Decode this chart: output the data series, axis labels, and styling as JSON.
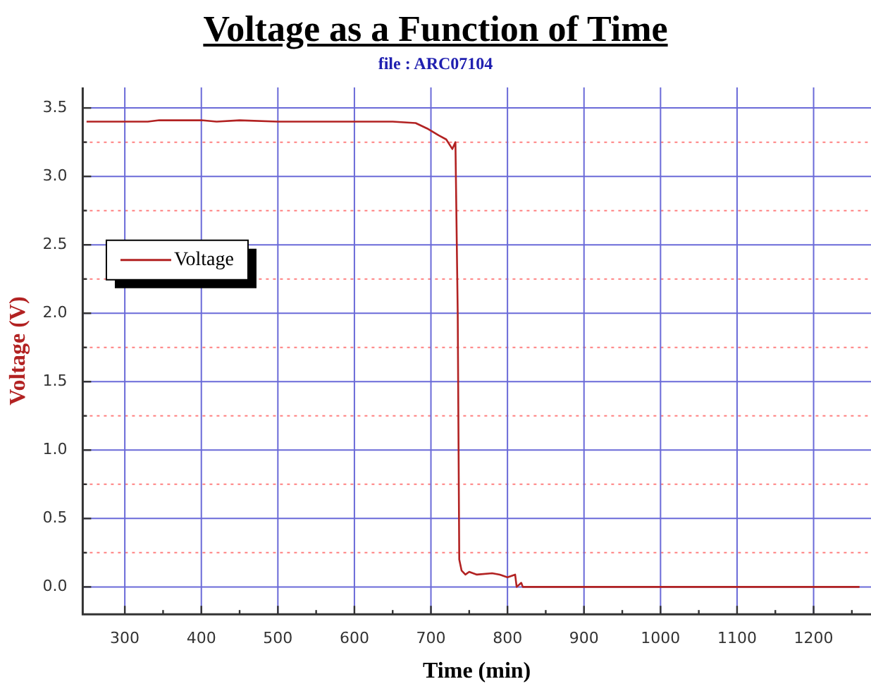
{
  "chart_data": {
    "type": "line",
    "title": "Voltage as a Function of Time",
    "subtitle": "file : ARC07104",
    "xlabel": "Time (min)",
    "ylabel": "Voltage (V)",
    "x": [
      250,
      330,
      345,
      400,
      420,
      450,
      500,
      550,
      600,
      650,
      680,
      695,
      710,
      720,
      728,
      732,
      735,
      737,
      740,
      745,
      750,
      760,
      780,
      790,
      800,
      810,
      812,
      818,
      820,
      1260
    ],
    "series": [
      {
        "name": "Voltage",
        "color": "#b22222",
        "values": [
          3.4,
          3.4,
          3.41,
          3.41,
          3.4,
          3.41,
          3.4,
          3.4,
          3.4,
          3.4,
          3.39,
          3.35,
          3.3,
          3.27,
          3.2,
          3.25,
          2.0,
          0.2,
          0.12,
          0.09,
          0.11,
          0.09,
          0.1,
          0.09,
          0.07,
          0.09,
          0.0,
          0.03,
          0.0,
          0.0
        ]
      }
    ],
    "xlim": [
      245,
      1275
    ],
    "ylim": [
      -0.2,
      3.65
    ],
    "xticks": [
      300,
      {
        "value": 350,
        "label": null
      },
      400,
      {
        "value": 450,
        "label": null
      },
      500,
      {
        "value": 550,
        "label": null
      },
      600,
      {
        "value": 650,
        "label": null
      },
      700,
      {
        "value": 750,
        "label": null
      },
      800,
      {
        "value": 850,
        "label": null
      },
      900,
      {
        "value": 950,
        "label": null
      },
      1000,
      {
        "value": 1050,
        "label": null
      },
      1100,
      {
        "value": 1150,
        "label": null
      },
      1200,
      {
        "value": 1250,
        "label": null
      }
    ],
    "yticks": [
      {
        "value": 0,
        "label": "0.0"
      },
      {
        "value": 0.25,
        "label": null
      },
      {
        "value": 0.5,
        "label": "0.5"
      },
      {
        "value": 0.75,
        "label": null
      },
      {
        "value": 1,
        "label": "1.0"
      },
      {
        "value": 1.25,
        "label": null
      },
      {
        "value": 1.5,
        "label": "1.5"
      },
      {
        "value": 1.75,
        "label": null
      },
      {
        "value": 2,
        "label": "2.0"
      },
      {
        "value": 2.25,
        "label": null
      },
      {
        "value": 2.5,
        "label": "2.5"
      },
      {
        "value": 2.75,
        "label": null
      },
      {
        "value": 3,
        "label": "3.0"
      },
      {
        "value": 3.25,
        "label": null
      },
      {
        "value": 3.5,
        "label": "3.5"
      }
    ],
    "grid": true,
    "legend": "left",
    "marker": "none",
    "line_style": "solid"
  }
}
